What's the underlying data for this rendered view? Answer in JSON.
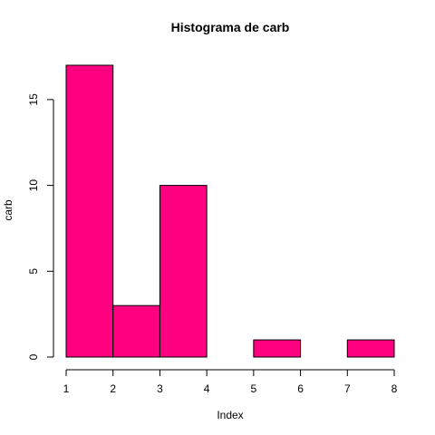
{
  "chart_data": {
    "type": "bar",
    "title": "Histograma de  carb",
    "xlabel": "Index",
    "ylabel": "carb",
    "bins": [
      {
        "x0": 1,
        "x1": 2,
        "count": 17
      },
      {
        "x0": 2,
        "x1": 3,
        "count": 3
      },
      {
        "x0": 3,
        "x1": 4,
        "count": 10
      },
      {
        "x0": 4,
        "x1": 5,
        "count": 0
      },
      {
        "x0": 5,
        "x1": 6,
        "count": 1
      },
      {
        "x0": 6,
        "x1": 7,
        "count": 0
      },
      {
        "x0": 7,
        "x1": 8,
        "count": 1
      }
    ],
    "xlim": [
      1,
      8
    ],
    "ylim": [
      0,
      17
    ],
    "x_ticks": [
      "1",
      "2",
      "3",
      "4",
      "5",
      "6",
      "7",
      "8"
    ],
    "y_ticks": [
      "0",
      "5",
      "10",
      "15"
    ],
    "bar_color": "#FF0080",
    "grid": false
  }
}
